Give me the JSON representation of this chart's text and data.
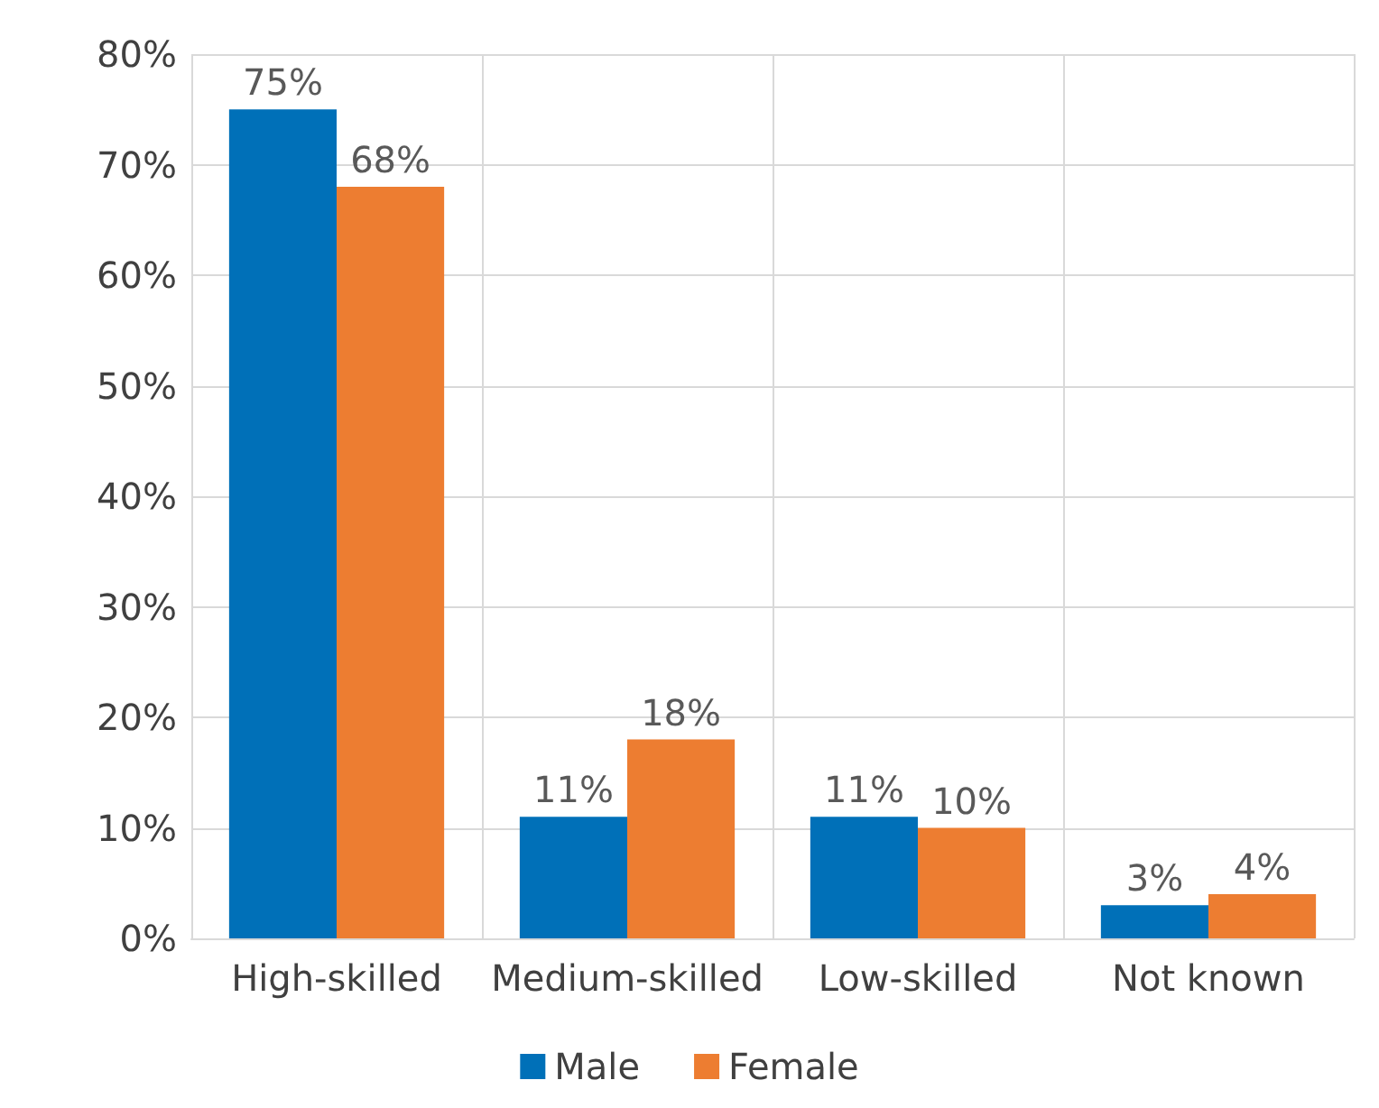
{
  "chart_data": {
    "type": "bar",
    "categories": [
      "High-skilled",
      "Medium-skilled",
      "Low-skilled",
      "Not known"
    ],
    "series": [
      {
        "name": "Male",
        "color": "#0070b8",
        "values": [
          75,
          11,
          11,
          3
        ],
        "value_labels": [
          "75%",
          "11%",
          "11%",
          "3%"
        ]
      },
      {
        "name": "Female",
        "color": "#ed7d31",
        "values": [
          68,
          18,
          10,
          4
        ],
        "value_labels": [
          "68%",
          "18%",
          "10%",
          "4%"
        ]
      }
    ],
    "ylim": [
      0,
      80
    ],
    "yticks": [
      {
        "value": 0,
        "label": "0%"
      },
      {
        "value": 10,
        "label": "10%"
      },
      {
        "value": 20,
        "label": "20%"
      },
      {
        "value": 30,
        "label": "30%"
      },
      {
        "value": 40,
        "label": "40%"
      },
      {
        "value": 50,
        "label": "50%"
      },
      {
        "value": 60,
        "label": "60%"
      },
      {
        "value": 70,
        "label": "70%"
      },
      {
        "value": 80,
        "label": "80%"
      }
    ],
    "grid": true,
    "legend": "bottom"
  }
}
